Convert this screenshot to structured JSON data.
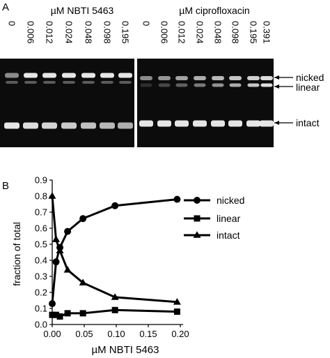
{
  "figure": {
    "panel_a": {
      "label": "A",
      "left_header": "µM NBTI 5463",
      "right_header": "µM ciprofloxacin",
      "left_lanes": [
        "0",
        "0.006",
        "0.012",
        "0.024",
        "0.048",
        "0.098",
        "0.195"
      ],
      "right_lanes": [
        "0",
        "0.006",
        "0.012",
        "0.024",
        "0.048",
        "0.098",
        "0.195",
        "0.391"
      ],
      "band_labels": [
        "nicked",
        "linear",
        "intact"
      ],
      "colors": {
        "gel": "#0c0c0c",
        "band": "#f2f2f2"
      }
    },
    "panel_b": {
      "label": "B"
    }
  },
  "chart_data": {
    "type": "line",
    "title": "",
    "xlabel": "µM NBTI 5463",
    "ylabel": "fraction of total",
    "xlim": [
      0,
      0.2
    ],
    "ylim": [
      0,
      0.9
    ],
    "x_ticks": [
      "0.00",
      "0.05",
      "0.10",
      "0.15",
      "0.20"
    ],
    "y_ticks": [
      "0.0",
      "0.1",
      "0.2",
      "0.3",
      "0.4",
      "0.5",
      "0.6",
      "0.7",
      "0.8",
      "0.9"
    ],
    "x": [
      0,
      0.006,
      0.012,
      0.024,
      0.048,
      0.098,
      0.195
    ],
    "series": [
      {
        "name": "nicked",
        "marker": "circle",
        "values": [
          0.13,
          0.39,
          0.48,
          0.58,
          0.66,
          0.74,
          0.78
        ]
      },
      {
        "name": "linear",
        "marker": "square",
        "values": [
          0.06,
          0.06,
          0.05,
          0.07,
          0.07,
          0.09,
          0.08
        ]
      },
      {
        "name": "intact",
        "marker": "triangle",
        "values": [
          0.8,
          0.53,
          0.46,
          0.34,
          0.26,
          0.17,
          0.14
        ]
      }
    ],
    "legend": "top-right",
    "grid": false,
    "color": "#000000"
  }
}
